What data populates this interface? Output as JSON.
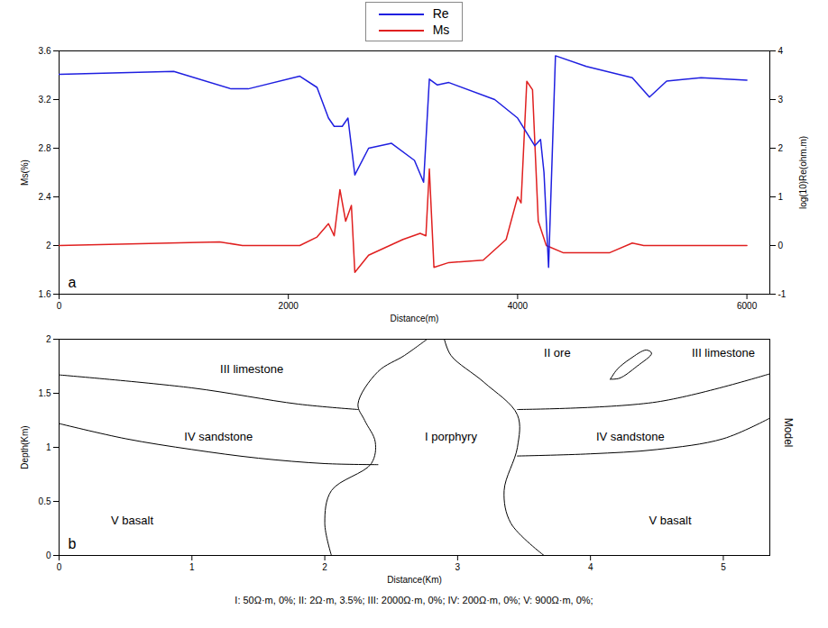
{
  "chart_data": [
    {
      "type": "line",
      "panel_label": "a",
      "x_label": "Distance(m)",
      "y_label": "Ms(%)",
      "y2_label": "log(10)Re(ohm.m)",
      "xlim": [
        0,
        6200
      ],
      "xticks": [
        0,
        2000,
        4000,
        6000
      ],
      "ylim": [
        1.6,
        3.6
      ],
      "yticks": [
        1.6,
        2,
        2.4,
        2.8,
        3.2,
        3.6
      ],
      "y2lim": [
        -1,
        4
      ],
      "y2ticks": [
        -1,
        0,
        1,
        2,
        3,
        4
      ],
      "legend": "top",
      "series": [
        {
          "name": "Re",
          "color": "#1f1fe0",
          "axis": "y2",
          "x": [
            0,
            1000,
            1500,
            1650,
            2100,
            2250,
            2350,
            2400,
            2470,
            2520,
            2580,
            2700,
            2900,
            3100,
            3180,
            3230,
            3300,
            3400,
            3800,
            4000,
            4150,
            4200,
            4230,
            4270,
            4330,
            4600,
            5000,
            5150,
            5300,
            5600,
            6000
          ],
          "values": [
            3.52,
            3.58,
            3.22,
            3.22,
            3.48,
            3.25,
            2.62,
            2.45,
            2.45,
            2.62,
            1.45,
            2.0,
            2.1,
            1.75,
            1.3,
            3.42,
            3.3,
            3.35,
            3.0,
            2.62,
            2.05,
            2.18,
            1.5,
            -0.45,
            3.9,
            3.68,
            3.45,
            3.05,
            3.38,
            3.45,
            3.4
          ]
        },
        {
          "name": "Ms",
          "color": "#e02020",
          "x": [
            0,
            1400,
            1600,
            2100,
            2250,
            2350,
            2400,
            2450,
            2500,
            2550,
            2580,
            2700,
            3000,
            3150,
            3200,
            3230,
            3270,
            3400,
            3700,
            3900,
            4000,
            4030,
            4080,
            4130,
            4180,
            4250,
            4400,
            4800,
            5000,
            5100,
            6000
          ],
          "values": [
            2.0,
            2.03,
            2.0,
            2.0,
            2.07,
            2.18,
            2.08,
            2.46,
            2.2,
            2.33,
            1.78,
            1.92,
            2.05,
            2.1,
            2.08,
            2.63,
            1.82,
            1.86,
            1.88,
            2.05,
            2.4,
            2.35,
            3.35,
            3.28,
            2.2,
            2.0,
            1.94,
            1.94,
            2.02,
            2.0,
            2.0
          ]
        }
      ]
    },
    {
      "type": "line",
      "panel_label": "b",
      "x_label": "Distance(Km)",
      "y_label": "Depth(Km)",
      "side_label": "Model",
      "xlim": [
        0,
        5.35
      ],
      "xticks": [
        0,
        1,
        2,
        3,
        4,
        5
      ],
      "ylim": [
        0,
        2
      ],
      "yticks": [
        0,
        0.5,
        1,
        1.5,
        2
      ],
      "color": "#000000",
      "boundaries": [
        [
          [
            0,
            1.67
          ],
          [
            1,
            1.55
          ],
          [
            1.8,
            1.4
          ],
          [
            2.25,
            1.35
          ]
        ],
        [
          [
            0,
            1.22
          ],
          [
            0.5,
            1.08
          ],
          [
            1,
            0.98
          ],
          [
            1.5,
            0.9
          ],
          [
            2.0,
            0.85
          ],
          [
            2.4,
            0.84
          ]
        ],
        [
          [
            2.05,
            0
          ],
          [
            2.0,
            0.3
          ],
          [
            2.05,
            0.6
          ],
          [
            2.35,
            0.85
          ],
          [
            2.38,
            1.05
          ],
          [
            2.3,
            1.25
          ],
          [
            2.25,
            1.4
          ],
          [
            2.4,
            1.7
          ],
          [
            2.6,
            1.85
          ],
          [
            2.77,
            2.0
          ]
        ],
        [
          [
            2.9,
            2.0
          ],
          [
            2.95,
            1.85
          ],
          [
            3.2,
            1.6
          ],
          [
            3.45,
            1.3
          ],
          [
            3.45,
            1.0
          ],
          [
            3.35,
            0.6
          ],
          [
            3.4,
            0.3
          ],
          [
            3.65,
            0
          ]
        ],
        [
          [
            3.45,
            1.35
          ],
          [
            4.5,
            1.42
          ],
          [
            5.35,
            1.68
          ]
        ],
        [
          [
            3.45,
            0.92
          ],
          [
            4.0,
            0.94
          ],
          [
            4.5,
            0.98
          ],
          [
            5.0,
            1.08
          ],
          [
            5.35,
            1.27
          ]
        ],
        [
          [
            4.15,
            1.63
          ],
          [
            4.2,
            1.72
          ],
          [
            4.3,
            1.82
          ],
          [
            4.42,
            1.9
          ],
          [
            4.46,
            1.87
          ],
          [
            4.35,
            1.75
          ],
          [
            4.22,
            1.64
          ],
          [
            4.15,
            1.63
          ]
        ]
      ],
      "annotations": [
        {
          "text": "III limestone",
          "x": 1.45,
          "y": 1.72
        },
        {
          "text": "IV sandstone",
          "x": 1.2,
          "y": 1.1
        },
        {
          "text": "I porphyry",
          "x": 2.95,
          "y": 1.1
        },
        {
          "text": "II ore",
          "x": 3.75,
          "y": 1.87
        },
        {
          "text": "III limestone",
          "x": 5.0,
          "y": 1.87
        },
        {
          "text": "IV sandstone",
          "x": 4.3,
          "y": 1.1
        },
        {
          "text": "V basalt",
          "x": 0.55,
          "y": 0.32
        },
        {
          "text": "V basalt",
          "x": 4.6,
          "y": 0.32
        }
      ],
      "caption": "I: 50Ω·m, 0%; II: 2Ω·m, 3.5%; III: 2000Ω·m, 0%; IV: 200Ω·m, 0%; V: 900Ω·m, 0%;"
    }
  ]
}
